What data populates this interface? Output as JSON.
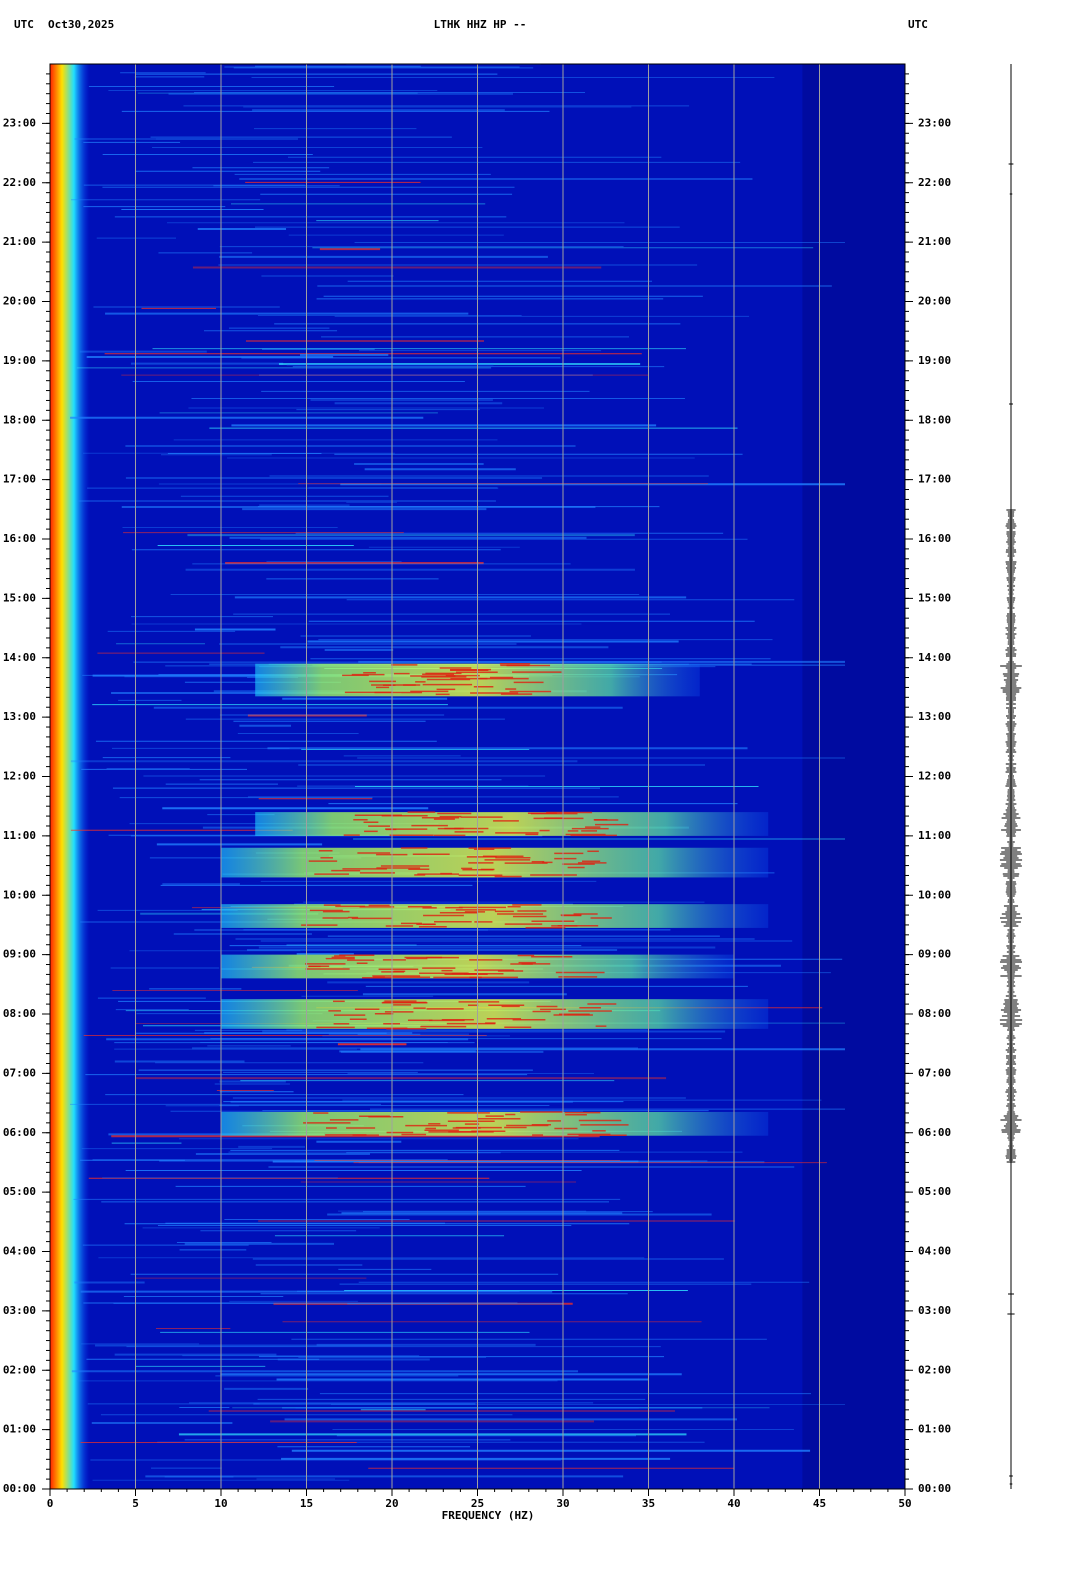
{
  "chart_data": {
    "type": "spectrogram",
    "timezone_left": "UTC",
    "date": "Oct30,2025",
    "title": "LTHK HHZ HP --",
    "timezone_right": "UTC",
    "xlabel": "FREQUENCY (HZ)",
    "xlim": [
      0,
      50
    ],
    "xticks": [
      0,
      5,
      10,
      15,
      20,
      25,
      30,
      35,
      40,
      45,
      50
    ],
    "ylim": [
      0,
      24
    ],
    "yticks": [
      {
        "value": 0,
        "label": "00:00"
      },
      {
        "value": 1,
        "label": "01:00"
      },
      {
        "value": 2,
        "label": "02:00"
      },
      {
        "value": 3,
        "label": "03:00"
      },
      {
        "value": 4,
        "label": "04:00"
      },
      {
        "value": 5,
        "label": "05:00"
      },
      {
        "value": 6,
        "label": "06:00"
      },
      {
        "value": 7,
        "label": "07:00"
      },
      {
        "value": 8,
        "label": "08:00"
      },
      {
        "value": 9,
        "label": "09:00"
      },
      {
        "value": 10,
        "label": "10:00"
      },
      {
        "value": 11,
        "label": "11:00"
      },
      {
        "value": 12,
        "label": "12:00"
      },
      {
        "value": 13,
        "label": "13:00"
      },
      {
        "value": 14,
        "label": "14:00"
      },
      {
        "value": 15,
        "label": "15:00"
      },
      {
        "value": 16,
        "label": "16:00"
      },
      {
        "value": 17,
        "label": "17:00"
      },
      {
        "value": 18,
        "label": "18:00"
      },
      {
        "value": 19,
        "label": "19:00"
      },
      {
        "value": 20,
        "label": "20:00"
      },
      {
        "value": 21,
        "label": "21:00"
      },
      {
        "value": 22,
        "label": "22:00"
      },
      {
        "value": 23,
        "label": "23:00"
      }
    ],
    "grid": true,
    "grid_color": "#a0a0a0",
    "background_color": "#0010b8",
    "energy_bands": [
      {
        "freq": [
          10,
          42
        ],
        "time": [
          5.95,
          6.35
        ]
      },
      {
        "freq": [
          10,
          42
        ],
        "time": [
          7.75,
          8.25
        ]
      },
      {
        "freq": [
          10,
          40
        ],
        "time": [
          8.6,
          9.0
        ]
      },
      {
        "freq": [
          10,
          42
        ],
        "time": [
          9.45,
          9.85
        ]
      },
      {
        "freq": [
          10,
          42
        ],
        "time": [
          10.3,
          10.8
        ]
      },
      {
        "freq": [
          12,
          42
        ],
        "time": [
          11.0,
          11.4
        ]
      },
      {
        "freq": [
          12,
          38
        ],
        "time": [
          13.35,
          13.9
        ]
      }
    ]
  }
}
